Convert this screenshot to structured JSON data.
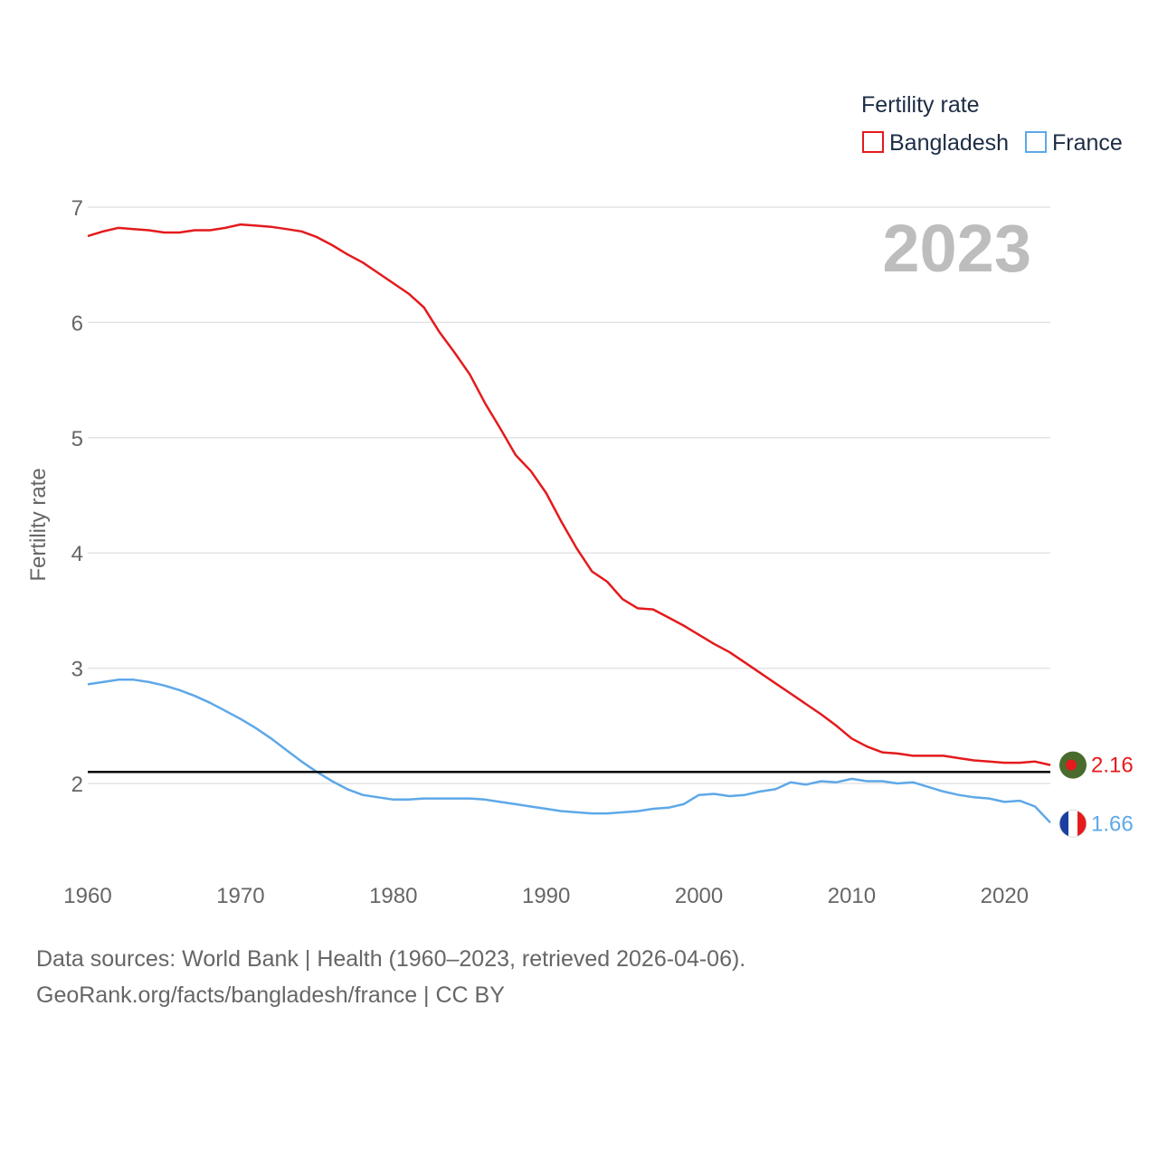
{
  "chart_data": {
    "type": "line",
    "title": "",
    "xlabel": "",
    "ylabel": "Fertility rate",
    "xlim": [
      1960,
      2023
    ],
    "ylim": [
      1.3,
      7
    ],
    "y_ticks": [
      2,
      3,
      4,
      5,
      6,
      7
    ],
    "x_ticks": [
      1960,
      1970,
      1980,
      1990,
      2000,
      2010,
      2020
    ],
    "year_label": "2023",
    "legend": {
      "title": "Fertility rate",
      "placement": "top-right"
    },
    "reference_line": {
      "y": 2.1,
      "color": "#000000"
    },
    "x": [
      1960,
      1961,
      1962,
      1963,
      1964,
      1965,
      1966,
      1967,
      1968,
      1969,
      1970,
      1971,
      1972,
      1973,
      1974,
      1975,
      1976,
      1977,
      1978,
      1979,
      1980,
      1981,
      1982,
      1983,
      1984,
      1985,
      1986,
      1987,
      1988,
      1989,
      1990,
      1991,
      1992,
      1993,
      1994,
      1995,
      1996,
      1997,
      1998,
      1999,
      2000,
      2001,
      2002,
      2003,
      2004,
      2005,
      2006,
      2007,
      2008,
      2009,
      2010,
      2011,
      2012,
      2013,
      2014,
      2015,
      2016,
      2017,
      2018,
      2019,
      2020,
      2021,
      2022,
      2023
    ],
    "series": [
      {
        "name": "Bangladesh",
        "color": "#e41a1c",
        "end_label": "2.16",
        "values": [
          6.75,
          6.79,
          6.82,
          6.81,
          6.8,
          6.78,
          6.78,
          6.8,
          6.8,
          6.82,
          6.85,
          6.84,
          6.83,
          6.81,
          6.79,
          6.74,
          6.67,
          6.59,
          6.52,
          6.43,
          6.34,
          6.25,
          6.13,
          5.92,
          5.74,
          5.55,
          5.3,
          5.08,
          4.85,
          4.71,
          4.52,
          4.27,
          4.04,
          3.84,
          3.75,
          3.6,
          3.52,
          3.51,
          3.44,
          3.37,
          3.29,
          3.21,
          3.14,
          3.05,
          2.96,
          2.87,
          2.78,
          2.69,
          2.6,
          2.5,
          2.39,
          2.32,
          2.27,
          2.26,
          2.24,
          2.24,
          2.24,
          2.22,
          2.2,
          2.19,
          2.18,
          2.18,
          2.19,
          2.16
        ]
      },
      {
        "name": "France",
        "color": "#5ea8e8",
        "end_label": "1.66",
        "values": [
          2.86,
          2.88,
          2.9,
          2.9,
          2.88,
          2.85,
          2.81,
          2.76,
          2.7,
          2.63,
          2.56,
          2.48,
          2.39,
          2.29,
          2.19,
          2.1,
          2.02,
          1.95,
          1.9,
          1.88,
          1.86,
          1.86,
          1.87,
          1.87,
          1.87,
          1.87,
          1.86,
          1.84,
          1.82,
          1.8,
          1.78,
          1.76,
          1.75,
          1.74,
          1.74,
          1.75,
          1.76,
          1.78,
          1.79,
          1.82,
          1.9,
          1.91,
          1.89,
          1.9,
          1.93,
          1.95,
          2.01,
          1.99,
          2.02,
          2.01,
          2.04,
          2.02,
          2.02,
          2.0,
          2.01,
          1.97,
          1.93,
          1.9,
          1.88,
          1.87,
          1.84,
          1.85,
          1.8,
          1.66
        ]
      }
    ]
  },
  "footer": {
    "source_line": "Data sources: World Bank | Health (1960–2023, retrieved 2026-04-06).",
    "attribution_line": "GeoRank.org/facts/bangladesh/france | CC BY"
  }
}
